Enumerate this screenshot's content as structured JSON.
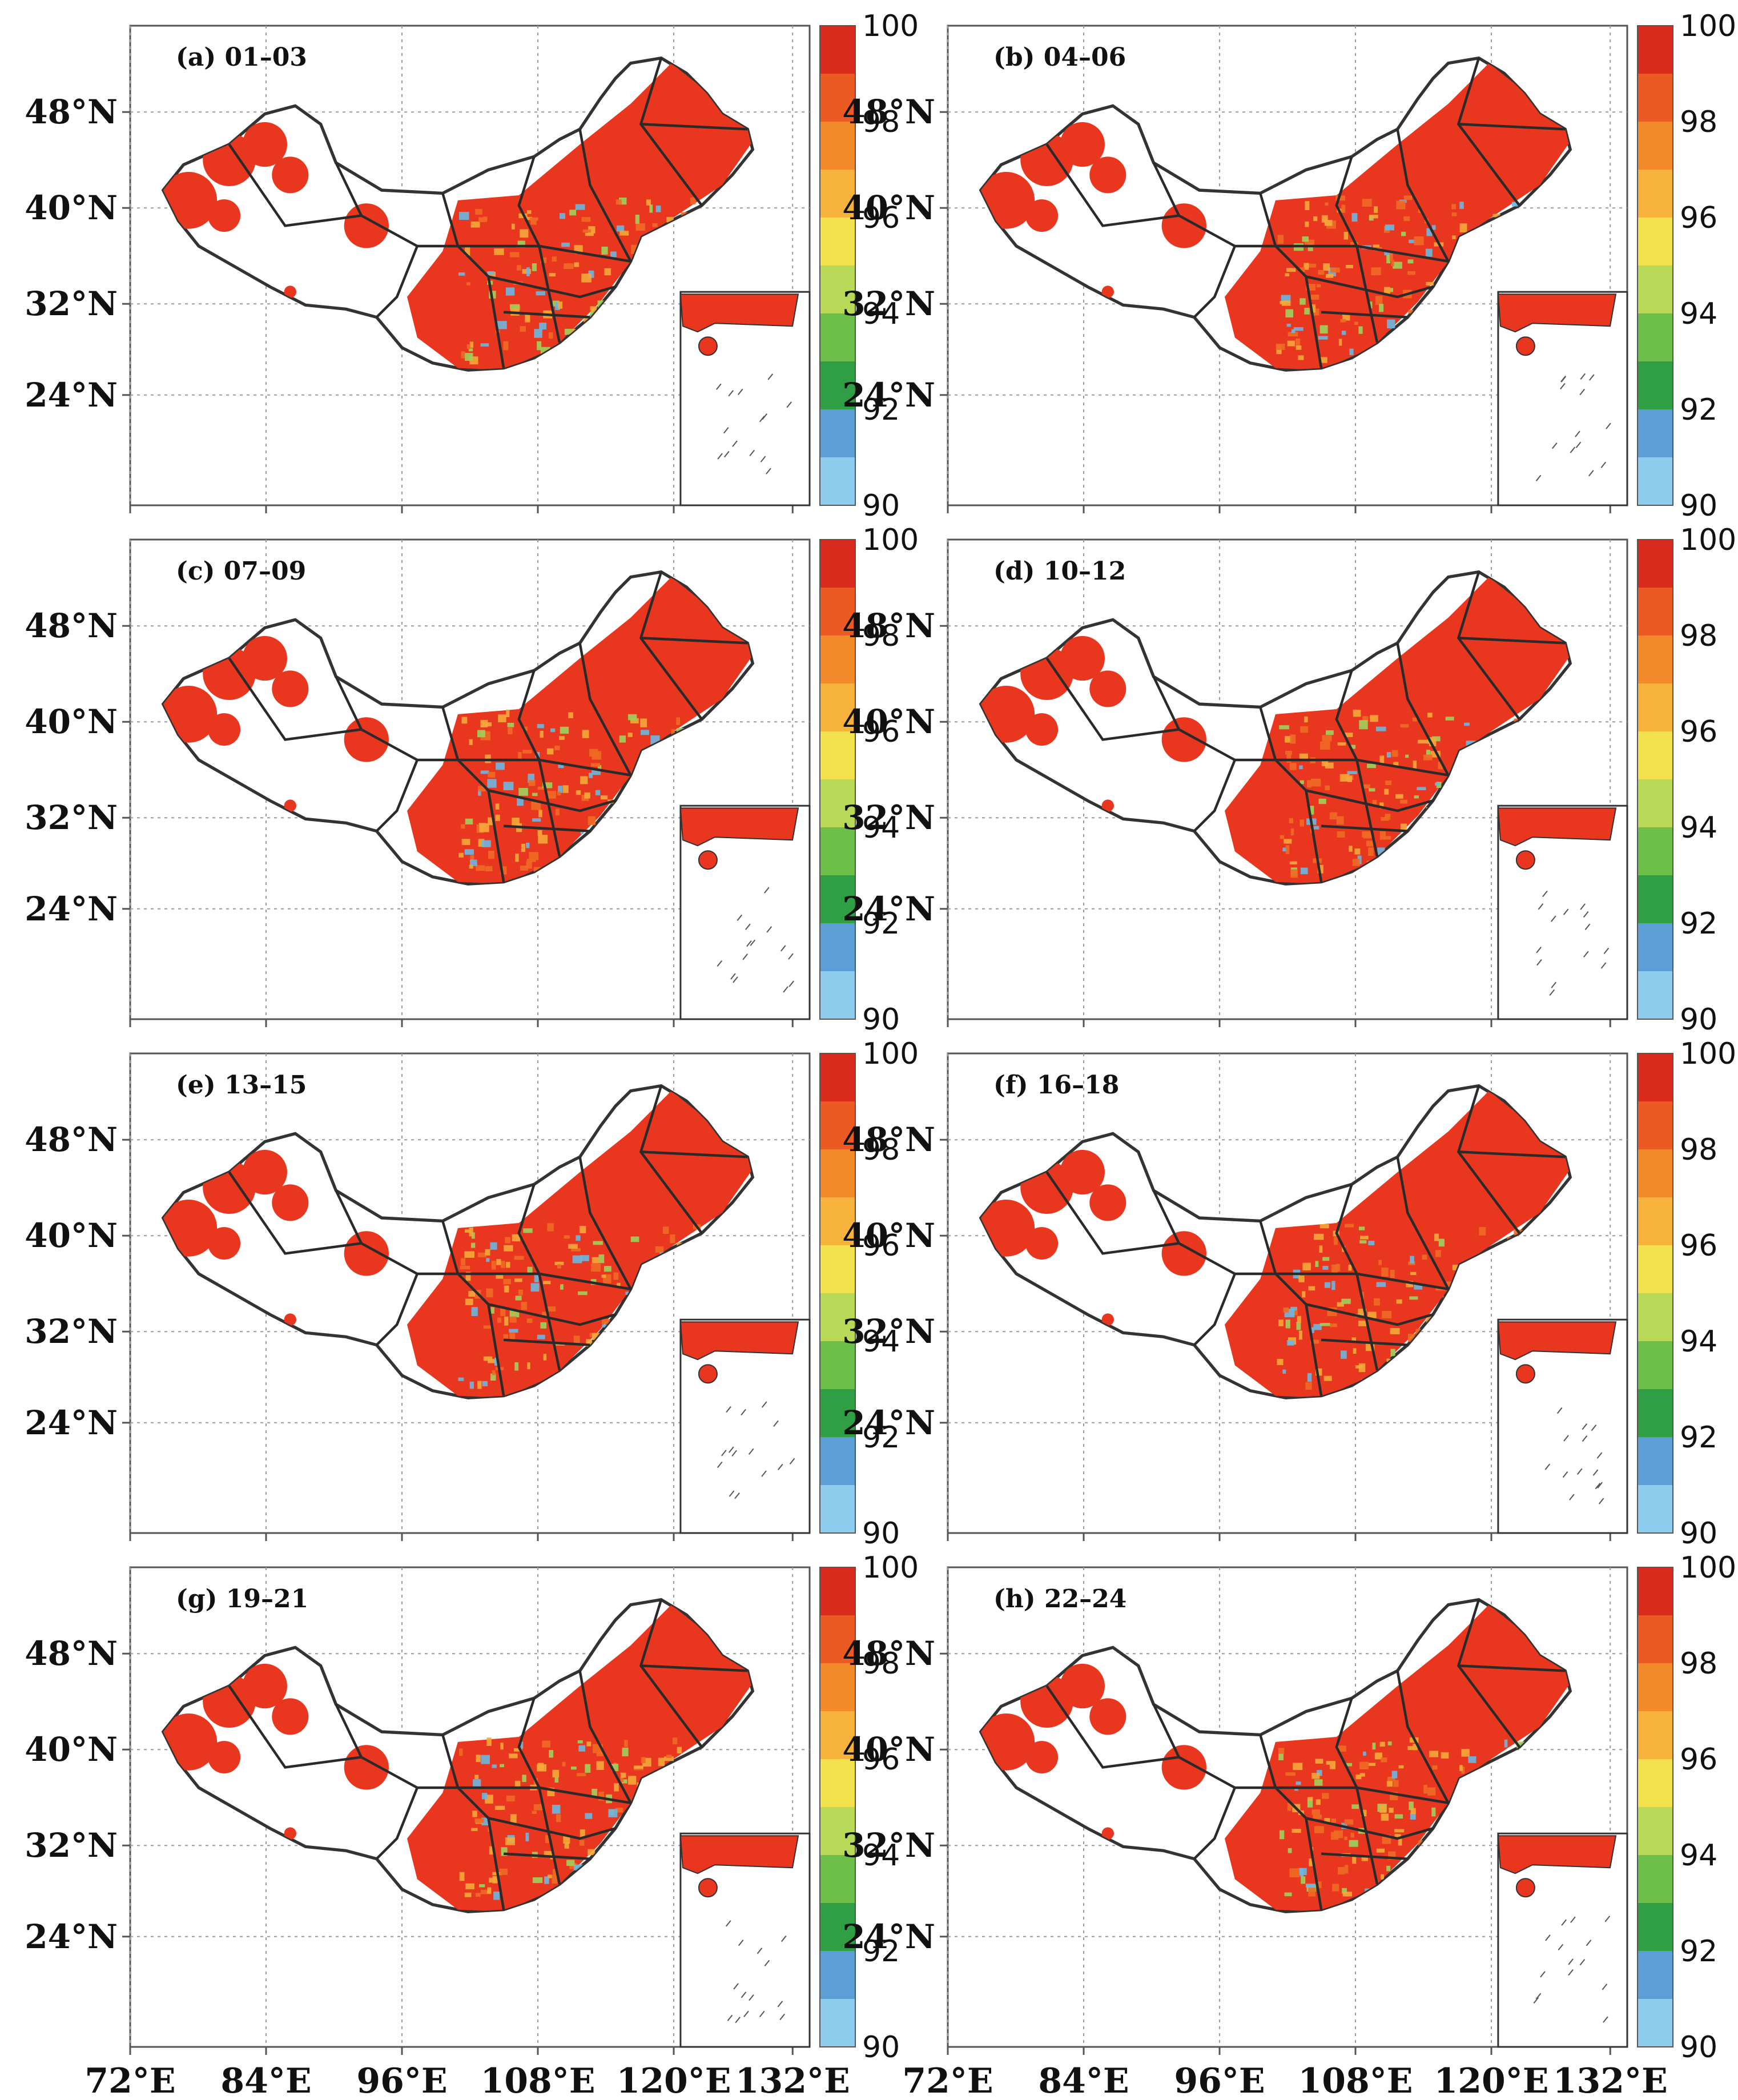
{
  "figure": {
    "panels": [
      {
        "id": "a",
        "title": "(a) 01–03"
      },
      {
        "id": "b",
        "title": "(b) 04–06"
      },
      {
        "id": "c",
        "title": "(c) 07–09"
      },
      {
        "id": "d",
        "title": "(d) 10–12"
      },
      {
        "id": "e",
        "title": "(e) 13–15"
      },
      {
        "id": "f",
        "title": "(f) 16–18"
      },
      {
        "id": "g",
        "title": "(g) 19–21"
      },
      {
        "id": "h",
        "title": "(h) 22–24"
      }
    ],
    "latitude_labels": [
      "48°N",
      "40°N",
      "32°N",
      "24°N"
    ],
    "longitude_labels": [
      "72°E",
      "84°E",
      "96°E",
      "108°E",
      "120°E",
      "132°E"
    ],
    "colorbar": {
      "labels": [
        "100",
        "98",
        "96",
        "94",
        "92",
        "90"
      ],
      "min": 90,
      "max": 100,
      "colors": [
        "#8fcdef",
        "#5b9fd6",
        "#2f9e45",
        "#6cc04a",
        "#b7d957",
        "#f2e24d",
        "#f7b23b",
        "#f28a2c",
        "#ea5a22",
        "#d92b1b"
      ]
    },
    "map_colors": {
      "dominant": "#e8361f",
      "high": "#f06a24",
      "mid": "#f5a93a",
      "low": "#9fd05a",
      "lowest": "#6db7e0"
    }
  }
}
